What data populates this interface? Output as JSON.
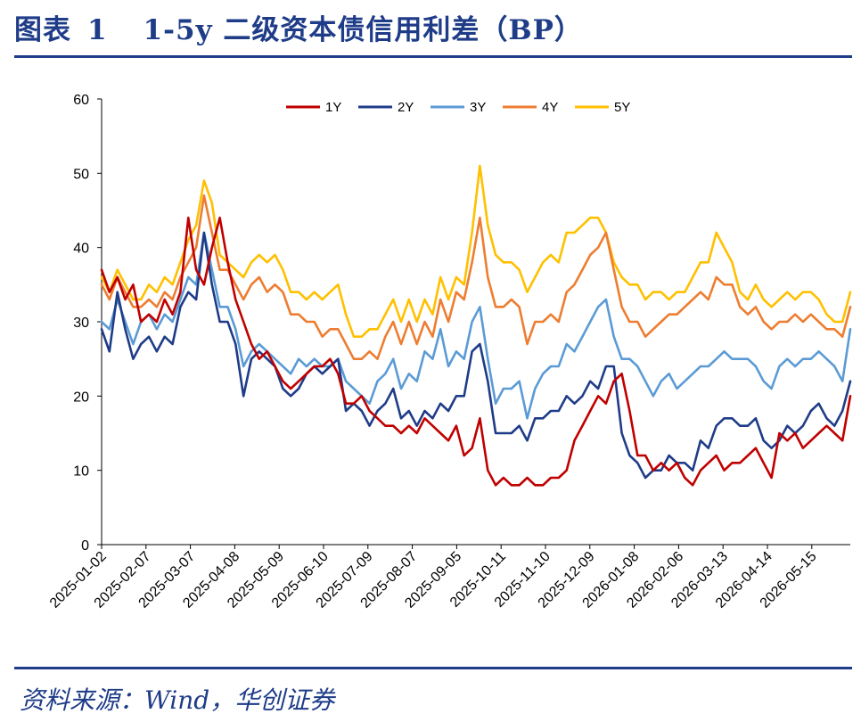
{
  "header": {
    "figure_label": "图表",
    "figure_number": "1",
    "title": "1-5y 二级资本债信用利差（BP）"
  },
  "footer": {
    "source": "资料来源：Wind，华创证券"
  },
  "chart_data": {
    "type": "line",
    "title": "1-5y 二级资本债信用利差（BP）",
    "xlabel": "",
    "ylabel": "",
    "ylim": [
      0,
      60
    ],
    "yticks": [
      0,
      10,
      20,
      30,
      40,
      50,
      60
    ],
    "grid": false,
    "legend_position": "top",
    "x_tick_labels": [
      "2025-01-02",
      "2025-02-07",
      "2025-03-07",
      "2025-04-08",
      "2025-05-09",
      "2025-06-10",
      "2025-07-09",
      "2025-08-07",
      "2025-09-05",
      "2025-10-11",
      "2025-11-10",
      "2025-12-09",
      "2026-01-08",
      "2026-02-06",
      "2026-03-13",
      "2026-04-14",
      "2026-05-15"
    ],
    "series": [
      {
        "name": "1Y",
        "color": "#c00000",
        "values": [
          37,
          34,
          36,
          33,
          35,
          30,
          31,
          30,
          33,
          31,
          34,
          44,
          37,
          35,
          40,
          44,
          38,
          33,
          30,
          27,
          25,
          26,
          24,
          22,
          21,
          22,
          23,
          24,
          24,
          25,
          23,
          19,
          19,
          20,
          18,
          17,
          16,
          16,
          15,
          16,
          15,
          17,
          16,
          15,
          14,
          16,
          12,
          13,
          17,
          10,
          8,
          9,
          8,
          8,
          9,
          8,
          8,
          9,
          9,
          10,
          14,
          16,
          18,
          20,
          19,
          22,
          23,
          18,
          12,
          12,
          10,
          11,
          10,
          11,
          9,
          8,
          10,
          11,
          12,
          10,
          11,
          11,
          12,
          13,
          11,
          9,
          15,
          14,
          15,
          13,
          14,
          15,
          16,
          15,
          14,
          20
        ]
      },
      {
        "name": "2Y",
        "color": "#1f3c88",
        "values": [
          29,
          26,
          34,
          29,
          25,
          27,
          28,
          26,
          28,
          27,
          32,
          34,
          33,
          42,
          35,
          30,
          30,
          27,
          20,
          25,
          26,
          25,
          24,
          21,
          20,
          21,
          23,
          24,
          23,
          24,
          25,
          18,
          19,
          18,
          16,
          18,
          19,
          21,
          17,
          18,
          16,
          18,
          17,
          19,
          18,
          20,
          20,
          26,
          27,
          22,
          15,
          15,
          15,
          16,
          14,
          17,
          17,
          18,
          18,
          20,
          19,
          20,
          22,
          21,
          24,
          24,
          15,
          12,
          11,
          9,
          10,
          10,
          12,
          11,
          11,
          10,
          14,
          13,
          16,
          17,
          17,
          16,
          16,
          17,
          14,
          13,
          14,
          16,
          15,
          16,
          18,
          19,
          17,
          16,
          18,
          22
        ]
      },
      {
        "name": "3Y",
        "color": "#5b9bd5",
        "values": [
          30,
          29,
          33,
          30,
          27,
          30,
          31,
          29,
          31,
          30,
          33,
          36,
          35,
          42,
          37,
          32,
          32,
          29,
          24,
          26,
          27,
          26,
          25,
          24,
          23,
          25,
          24,
          25,
          24,
          24,
          25,
          22,
          21,
          20,
          19,
          22,
          23,
          25,
          21,
          23,
          22,
          26,
          25,
          29,
          24,
          26,
          25,
          30,
          32,
          25,
          19,
          21,
          21,
          22,
          17,
          21,
          23,
          24,
          24,
          27,
          26,
          28,
          30,
          32,
          33,
          28,
          25,
          25,
          24,
          22,
          20,
          22,
          23,
          21,
          22,
          23,
          24,
          24,
          25,
          26,
          25,
          25,
          25,
          24,
          22,
          21,
          24,
          25,
          24,
          25,
          25,
          26,
          25,
          24,
          22,
          29
        ]
      },
      {
        "name": "4Y",
        "color": "#ed7d31",
        "values": [
          35,
          33,
          36,
          34,
          32,
          32,
          33,
          32,
          34,
          33,
          36,
          38,
          40,
          47,
          42,
          37,
          37,
          35,
          33,
          35,
          36,
          34,
          35,
          34,
          31,
          31,
          30,
          30,
          28,
          29,
          29,
          27,
          25,
          25,
          26,
          25,
          28,
          30,
          27,
          30,
          27,
          30,
          28,
          33,
          30,
          34,
          33,
          38,
          44,
          36,
          32,
          32,
          33,
          32,
          27,
          30,
          30,
          31,
          30,
          34,
          35,
          37,
          39,
          40,
          42,
          37,
          32,
          30,
          30,
          28,
          29,
          30,
          31,
          31,
          32,
          33,
          34,
          33,
          36,
          35,
          35,
          32,
          31,
          32,
          30,
          29,
          30,
          30,
          31,
          30,
          31,
          30,
          29,
          29,
          28,
          32
        ]
      },
      {
        "name": "5Y",
        "color": "#ffc000",
        "values": [
          36,
          34,
          37,
          35,
          33,
          33,
          35,
          34,
          36,
          35,
          38,
          41,
          43,
          49,
          46,
          39,
          38,
          37,
          36,
          38,
          39,
          38,
          39,
          37,
          34,
          34,
          33,
          34,
          33,
          34,
          35,
          31,
          28,
          28,
          29,
          29,
          31,
          33,
          30,
          33,
          30,
          33,
          31,
          36,
          33,
          36,
          35,
          42,
          51,
          43,
          39,
          38,
          38,
          37,
          34,
          36,
          38,
          39,
          38,
          42,
          42,
          43,
          44,
          44,
          42,
          38,
          36,
          35,
          35,
          33,
          34,
          34,
          33,
          34,
          34,
          36,
          38,
          38,
          42,
          40,
          38,
          34,
          33,
          35,
          33,
          32,
          33,
          34,
          33,
          34,
          34,
          33,
          31,
          30,
          30,
          34
        ]
      }
    ],
    "legend": [
      {
        "name": "1Y",
        "color": "#c00000"
      },
      {
        "name": "2Y",
        "color": "#1f3c88"
      },
      {
        "name": "3Y",
        "color": "#5b9bd5"
      },
      {
        "name": "4Y",
        "color": "#ed7d31"
      },
      {
        "name": "5Y",
        "color": "#ffc000"
      }
    ]
  }
}
